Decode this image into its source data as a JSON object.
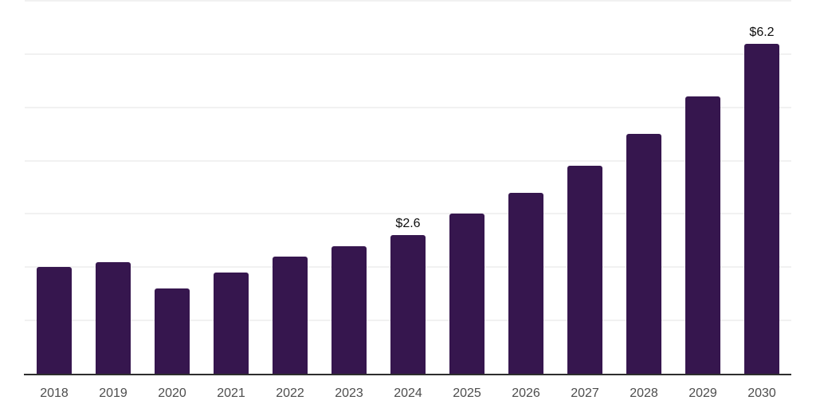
{
  "chart_data": {
    "type": "bar",
    "title": "",
    "xlabel": "",
    "ylabel": "",
    "categories": [
      "2018",
      "2019",
      "2020",
      "2021",
      "2022",
      "2023",
      "2024",
      "2025",
      "2026",
      "2027",
      "2028",
      "2029",
      "2030"
    ],
    "values": [
      2.0,
      2.1,
      1.6,
      1.9,
      2.2,
      2.4,
      2.6,
      3.0,
      3.4,
      3.9,
      4.5,
      5.2,
      6.2
    ],
    "data_labels": {
      "2024": "$2.6",
      "2030": "$6.2"
    },
    "ylim": [
      0,
      7
    ],
    "grid_interval": 1,
    "grid": "horizontal",
    "legend": "none",
    "bar_color": "#36164e",
    "gridline_color": "#f1f1f1",
    "axis_line_color": "#2e2e2e",
    "tick_label_color": "#4d4d4d",
    "data_label_color": "#0e0e0e"
  }
}
